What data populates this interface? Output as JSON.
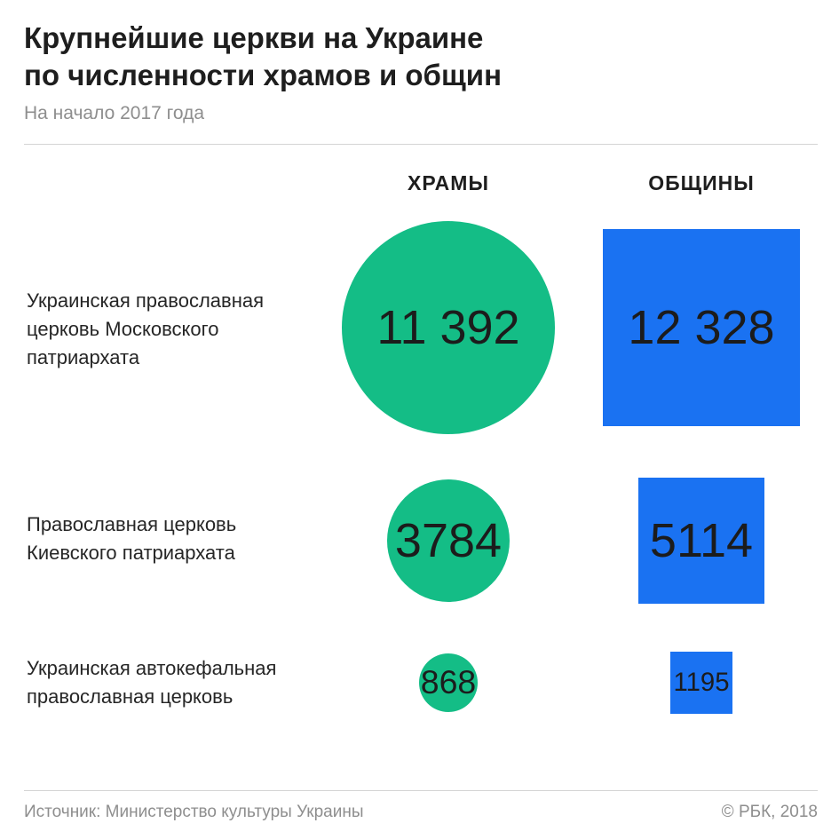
{
  "colors": {
    "temples": "#14bd86",
    "communities": "#1a72f2",
    "text": "#222222",
    "muted": "#8e8e8e"
  },
  "chart_data": {
    "type": "proportional-area",
    "title": "Крупнейшие церкви на Украине по численности храмов и общин",
    "title_lines": [
      "Крупнейшие церкви на Украине",
      "по численности храмов и общин"
    ],
    "subtitle": "На начало 2017 года",
    "columns": [
      {
        "key": "temples",
        "label": "ХРАМЫ",
        "shape": "circle"
      },
      {
        "key": "communities",
        "label": "ОБЩИНЫ",
        "shape": "square"
      }
    ],
    "rows": [
      {
        "label_lines": [
          "Украинская православная",
          "церковь Московского",
          "патриархата"
        ],
        "temples": 11392,
        "temples_label": "11 392",
        "communities": 12328,
        "communities_label": "12 328"
      },
      {
        "label_lines": [
          "Православная церковь",
          "Киевского патриархата"
        ],
        "temples": 3784,
        "temples_label": "3784",
        "communities": 5114,
        "communities_label": "5114"
      },
      {
        "label_lines": [
          "Украинская автокефальная",
          "православная церковь"
        ],
        "temples": 868,
        "temples_label": "868",
        "communities": 1195,
        "communities_label": "1195"
      }
    ]
  },
  "footer": {
    "source": "Источник: Министерство культуры Украины",
    "credit": "© РБК, 2018"
  }
}
